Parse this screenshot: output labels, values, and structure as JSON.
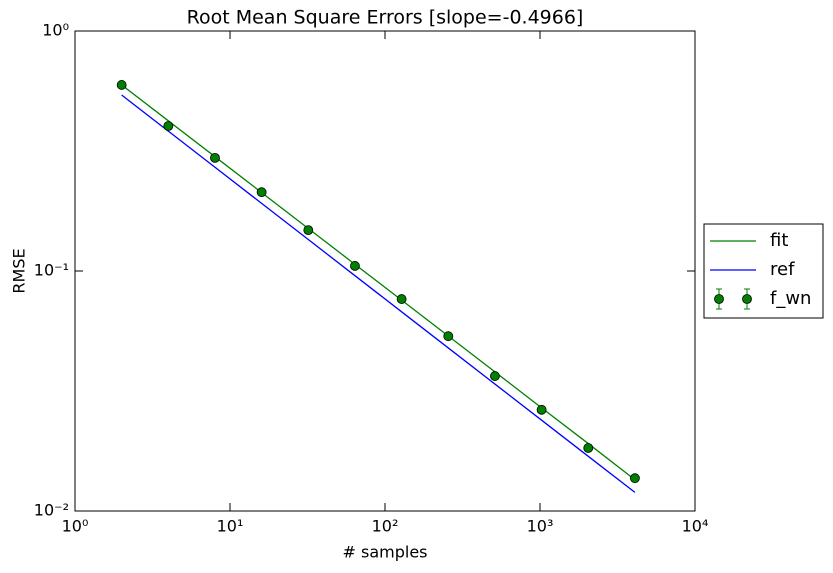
{
  "chart_data": {
    "type": "line",
    "title": "Root Mean Square Errors [slope=-0.4966]",
    "x_label": "# samples",
    "y_label": "RMSE",
    "xscale": "log",
    "yscale": "log",
    "xlim": [
      1,
      10000
    ],
    "ylim": [
      0.01,
      1
    ],
    "xticks": [
      {
        "value": 1,
        "label": "10⁰"
      },
      {
        "value": 10,
        "label": "10¹"
      },
      {
        "value": 100,
        "label": "10²"
      },
      {
        "value": 1000,
        "label": "10³"
      },
      {
        "value": 10000,
        "label": "10⁴"
      }
    ],
    "yticks": [
      {
        "value": 0.01,
        "label": "10⁻²"
      },
      {
        "value": 0.1,
        "label": "10⁻¹"
      },
      {
        "value": 1,
        "label": "10⁰"
      }
    ],
    "legend": "right",
    "x": [
      2,
      4,
      8,
      16,
      32,
      64,
      128,
      256,
      512,
      1024,
      2048,
      4096
    ],
    "series": [
      {
        "name": "fit",
        "color": "#008000",
        "style": "line",
        "values": [
          0.596,
          0.4224,
          0.2994,
          0.2122,
          0.1504,
          0.1066,
          0.0756,
          0.0536,
          0.038,
          0.0269,
          0.0191,
          0.0135
        ]
      },
      {
        "name": "ref",
        "color": "#0000ff",
        "style": "line",
        "values": [
          0.541,
          0.3825,
          0.2705,
          0.1913,
          0.1353,
          0.0956,
          0.0676,
          0.0478,
          0.0338,
          0.0239,
          0.0169,
          0.01196
        ]
      },
      {
        "name": "f_wn",
        "color": "#008000",
        "style": "marker",
        "values": [
          0.596,
          0.402,
          0.296,
          0.213,
          0.148,
          0.105,
          0.0764,
          0.0535,
          0.0365,
          0.0264,
          0.0183,
          0.0137
        ]
      }
    ]
  }
}
